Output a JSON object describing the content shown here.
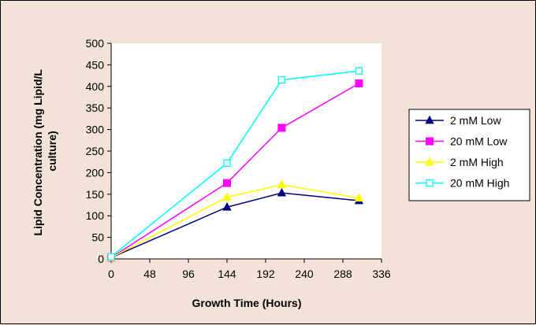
{
  "chart_data": {
    "type": "line",
    "xlabel": "Growth Time (Hours)",
    "ylabel_lines": [
      "Lipid Concentration (mg Lipid/L",
      "culture)"
    ],
    "xlim": [
      0,
      336
    ],
    "ylim": [
      0,
      500
    ],
    "xticks": [
      0,
      48,
      96,
      144,
      192,
      240,
      288,
      336
    ],
    "yticks": [
      0,
      50,
      100,
      150,
      200,
      250,
      300,
      350,
      400,
      450,
      500
    ],
    "grid": false,
    "legend_position": "right",
    "series": [
      {
        "name": "2 mM Low",
        "color": "#000080",
        "marker": "triangle-filled",
        "x": [
          0,
          144,
          212,
          308
        ],
        "y": [
          3,
          120,
          153,
          135
        ]
      },
      {
        "name": "20 mM Low",
        "color": "#ff00ff",
        "marker": "square-filled",
        "x": [
          0,
          144,
          212,
          308
        ],
        "y": [
          3,
          176,
          304,
          407
        ]
      },
      {
        "name": "2 mM High",
        "color": "#ffff00",
        "marker": "triangle-filled",
        "x": [
          0,
          144,
          212,
          308
        ],
        "y": [
          3,
          143,
          172,
          141
        ]
      },
      {
        "name": "20 mM High",
        "color": "#00ffff",
        "marker": "square-open",
        "x": [
          0,
          144,
          212,
          308
        ],
        "y": [
          5,
          222,
          415,
          436
        ]
      }
    ]
  }
}
